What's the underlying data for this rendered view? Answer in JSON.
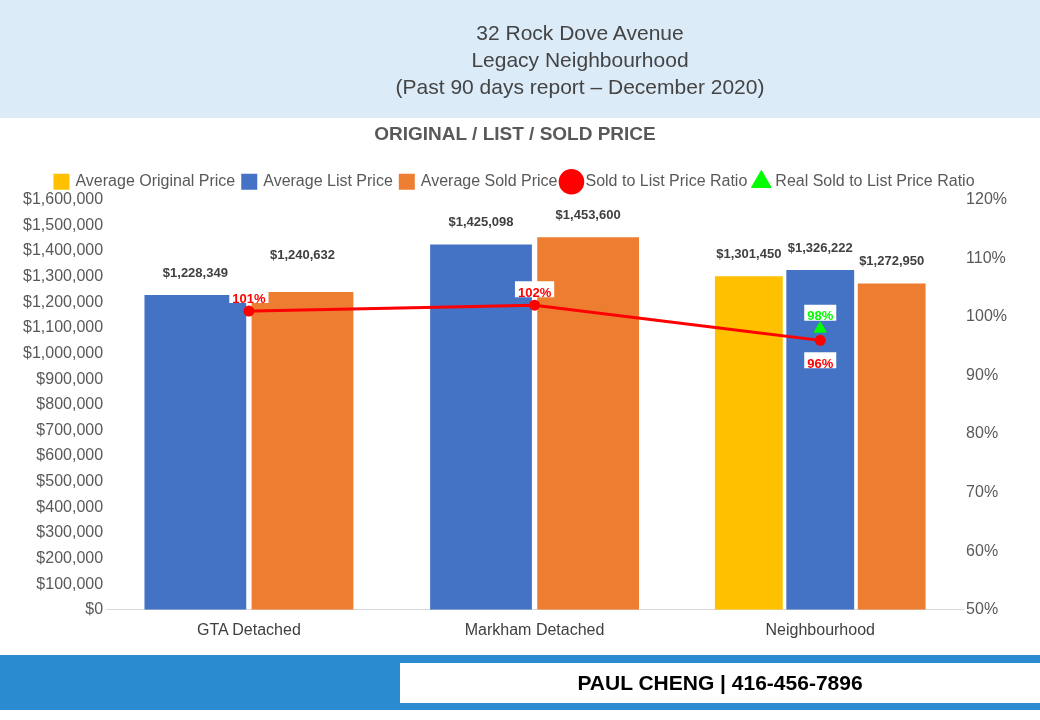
{
  "chart_data": {
    "type": "bar",
    "title": "ORIGINAL / LIST / SOLD PRICE",
    "subtitle": "32 Rock Dove Avenue\nLegacy Neighbourhood\n(Past 90 days report – December 2020)",
    "categories": [
      "GTA Detached",
      "Markham Detached",
      "Neighbourhood"
    ],
    "series": [
      {
        "name": "Average Original Price",
        "color": "#ffc000",
        "values": [
          null,
          null,
          1301450
        ],
        "value_labels": [
          null,
          null,
          "$1,301,450"
        ]
      },
      {
        "name": "Average List Price",
        "color": "#4472c4",
        "values": [
          1228349,
          1425098,
          1326222
        ],
        "value_labels": [
          "$1,228,349",
          "$1,425,098",
          "$1,326,222"
        ]
      },
      {
        "name": "Average Sold Price",
        "color": "#ed7d31",
        "values": [
          1240632,
          1453600,
          1272950
        ],
        "value_labels": [
          "$1,240,632",
          "$1,453,600",
          "$1,272,950"
        ]
      },
      {
        "name": "Sold to List Price Ratio",
        "type": "line",
        "axis": "y2",
        "color": "#ff0000",
        "marker": "circle",
        "line_style": "solid",
        "values": [
          101,
          102,
          96
        ],
        "value_labels": [
          "101%",
          "102%",
          "96%"
        ]
      },
      {
        "name": "Real Sold to List Price Ratio",
        "type": "scatter",
        "axis": "y2",
        "color": "#00ff00",
        "marker": "triangle",
        "values": [
          null,
          null,
          98
        ],
        "value_labels": [
          null,
          null,
          "98%"
        ]
      }
    ],
    "ylim": [
      0,
      1600000
    ],
    "yticks": [
      {
        "value": 0,
        "label": "$0"
      },
      {
        "value": 100000,
        "label": "$100,000"
      },
      {
        "value": 200000,
        "label": "$200,000"
      },
      {
        "value": 300000,
        "label": "$300,000"
      },
      {
        "value": 400000,
        "label": "$400,000"
      },
      {
        "value": 500000,
        "label": "$500,000"
      },
      {
        "value": 600000,
        "label": "$600,000"
      },
      {
        "value": 700000,
        "label": "$700,000"
      },
      {
        "value": 800000,
        "label": "$800,000"
      },
      {
        "value": 900000,
        "label": "$900,000"
      },
      {
        "value": 1000000,
        "label": "$1,000,000"
      },
      {
        "value": 1100000,
        "label": "$1,100,000"
      },
      {
        "value": 1200000,
        "label": "$1,200,000"
      },
      {
        "value": 1300000,
        "label": "$1,300,000"
      },
      {
        "value": 1400000,
        "label": "$1,400,000"
      },
      {
        "value": 1500000,
        "label": "$1,500,000"
      },
      {
        "value": 1600000,
        "label": "$1,600,000"
      }
    ],
    "y2lim": [
      50,
      120
    ],
    "y2ticks": [
      {
        "value": 50,
        "label": "50%"
      },
      {
        "value": 60,
        "label": "60%"
      },
      {
        "value": 70,
        "label": "70%"
      },
      {
        "value": 80,
        "label": "80%"
      },
      {
        "value": 90,
        "label": "90%"
      },
      {
        "value": 100,
        "label": "100%"
      },
      {
        "value": 110,
        "label": "110%"
      },
      {
        "value": 120,
        "label": "120%"
      }
    ],
    "legend": "top",
    "annotations": [
      "PAUL CHENG | 416-456-7896"
    ]
  }
}
